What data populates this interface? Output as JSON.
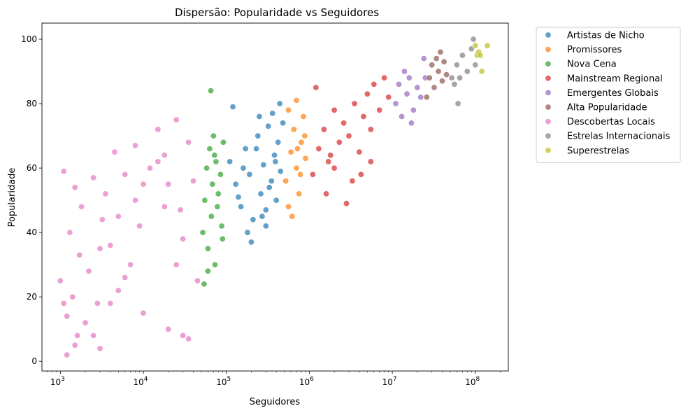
{
  "chart_data": {
    "type": "scatter",
    "title": "Dispersão: Popularidade vs Seguidores",
    "xlabel": "Seguidores",
    "ylabel": "Popularidade",
    "xscale": "log",
    "xlim": [
      600,
      250000000
    ],
    "ylim": [
      -3,
      105
    ],
    "x_ticks": [
      {
        "value": 1000,
        "base": "10",
        "exp": "3"
      },
      {
        "value": 10000,
        "base": "10",
        "exp": "4"
      },
      {
        "value": 100000,
        "base": "10",
        "exp": "5"
      },
      {
        "value": 1000000,
        "base": "10",
        "exp": "6"
      },
      {
        "value": 10000000,
        "base": "10",
        "exp": "7"
      },
      {
        "value": 100000000,
        "base": "10",
        "exp": "8"
      }
    ],
    "y_ticks": [
      0,
      20,
      40,
      60,
      80,
      100
    ],
    "grid": false,
    "legend_position": "outside-right-top",
    "series": [
      {
        "name": "Artistas de Nicho",
        "color": "#1f77b4",
        "points": [
          [
            110000,
            62
          ],
          [
            130000,
            55
          ],
          [
            150000,
            48
          ],
          [
            170000,
            66
          ],
          [
            190000,
            58
          ],
          [
            210000,
            44
          ],
          [
            240000,
            70
          ],
          [
            260000,
            52
          ],
          [
            280000,
            61
          ],
          [
            300000,
            47
          ],
          [
            320000,
            73
          ],
          [
            350000,
            56
          ],
          [
            380000,
            64
          ],
          [
            400000,
            50
          ],
          [
            420000,
            68
          ],
          [
            450000,
            59
          ],
          [
            480000,
            74
          ],
          [
            120000,
            79
          ],
          [
            180000,
            40
          ],
          [
            250000,
            76
          ],
          [
            300000,
            42
          ],
          [
            360000,
            77
          ],
          [
            440000,
            80
          ],
          [
            200000,
            37
          ],
          [
            160000,
            60
          ],
          [
            230000,
            66
          ],
          [
            270000,
            45
          ],
          [
            330000,
            54
          ],
          [
            390000,
            62
          ],
          [
            140000,
            51
          ]
        ]
      },
      {
        "name": "Promissores",
        "color": "#ff7f0e",
        "points": [
          [
            520000,
            56
          ],
          [
            560000,
            48
          ],
          [
            600000,
            65
          ],
          [
            650000,
            72
          ],
          [
            700000,
            60
          ],
          [
            750000,
            52
          ],
          [
            800000,
            68
          ],
          [
            850000,
            76
          ],
          [
            900000,
            63
          ],
          [
            700000,
            81
          ],
          [
            620000,
            45
          ],
          [
            780000,
            58
          ],
          [
            880000,
            70
          ],
          [
            560000,
            78
          ],
          [
            720000,
            66
          ]
        ]
      },
      {
        "name": "Nova Cena",
        "color": "#2ca02c",
        "points": [
          [
            52000,
            40
          ],
          [
            55000,
            50
          ],
          [
            58000,
            60
          ],
          [
            60000,
            35
          ],
          [
            63000,
            66
          ],
          [
            66000,
            45
          ],
          [
            68000,
            55
          ],
          [
            70000,
            70
          ],
          [
            73000,
            30
          ],
          [
            75000,
            62
          ],
          [
            78000,
            48
          ],
          [
            80000,
            52
          ],
          [
            85000,
            58
          ],
          [
            88000,
            42
          ],
          [
            92000,
            68
          ],
          [
            65000,
            84
          ],
          [
            54000,
            24
          ],
          [
            60000,
            28
          ],
          [
            90000,
            38
          ],
          [
            72000,
            64
          ]
        ]
      },
      {
        "name": "Mainstream Regional",
        "color": "#d62728",
        "points": [
          [
            1100000,
            58
          ],
          [
            1300000,
            66
          ],
          [
            1500000,
            72
          ],
          [
            1700000,
            62
          ],
          [
            2000000,
            78
          ],
          [
            2300000,
            68
          ],
          [
            2600000,
            74
          ],
          [
            3000000,
            70
          ],
          [
            3500000,
            80
          ],
          [
            4000000,
            65
          ],
          [
            4500000,
            76
          ],
          [
            5000000,
            83
          ],
          [
            5500000,
            72
          ],
          [
            6000000,
            86
          ],
          [
            7000000,
            78
          ],
          [
            8000000,
            88
          ],
          [
            9000000,
            82
          ],
          [
            1200000,
            85
          ],
          [
            1600000,
            52
          ],
          [
            2000000,
            60
          ],
          [
            2800000,
            49
          ],
          [
            3300000,
            56
          ],
          [
            4200000,
            58
          ],
          [
            5500000,
            62
          ],
          [
            1800000,
            64
          ]
        ]
      },
      {
        "name": "Emergentes Globais",
        "color": "#9467bd",
        "points": [
          [
            11000000,
            80
          ],
          [
            12000000,
            86
          ],
          [
            13000000,
            76
          ],
          [
            14000000,
            90
          ],
          [
            15000000,
            83
          ],
          [
            16000000,
            88
          ],
          [
            18000000,
            78
          ],
          [
            20000000,
            85
          ],
          [
            22000000,
            82
          ],
          [
            24000000,
            94
          ],
          [
            25000000,
            88
          ],
          [
            17000000,
            74
          ]
        ]
      },
      {
        "name": "Alta Popularidade",
        "color": "#8c564b",
        "points": [
          [
            26000000,
            82
          ],
          [
            28000000,
            88
          ],
          [
            30000000,
            92
          ],
          [
            32000000,
            85
          ],
          [
            34000000,
            94
          ],
          [
            36000000,
            90
          ],
          [
            38000000,
            96
          ],
          [
            40000000,
            87
          ],
          [
            42000000,
            93
          ],
          [
            45000000,
            89
          ]
        ]
      },
      {
        "name": "Descobertas Locais",
        "color": "#e377c2",
        "points": [
          [
            1000,
            25
          ],
          [
            1100,
            59
          ],
          [
            1200,
            14
          ],
          [
            1300,
            40
          ],
          [
            1400,
            20
          ],
          [
            1500,
            54
          ],
          [
            1600,
            8
          ],
          [
            1700,
            33
          ],
          [
            1800,
            48
          ],
          [
            2000,
            12
          ],
          [
            2200,
            28
          ],
          [
            2500,
            57
          ],
          [
            2800,
            18
          ],
          [
            3000,
            4
          ],
          [
            3200,
            44
          ],
          [
            3500,
            52
          ],
          [
            4000,
            36
          ],
          [
            4500,
            65
          ],
          [
            5000,
            22
          ],
          [
            6000,
            58
          ],
          [
            7000,
            30
          ],
          [
            8000,
            67
          ],
          [
            9000,
            42
          ],
          [
            10000,
            15
          ],
          [
            12000,
            60
          ],
          [
            15000,
            72
          ],
          [
            18000,
            48
          ],
          [
            20000,
            55
          ],
          [
            25000,
            75
          ],
          [
            30000,
            38
          ],
          [
            35000,
            68
          ],
          [
            40000,
            56
          ],
          [
            45000,
            25
          ],
          [
            30000,
            8
          ],
          [
            35000,
            7
          ],
          [
            20000,
            10
          ],
          [
            15000,
            62
          ],
          [
            25000,
            30
          ],
          [
            8000,
            50
          ],
          [
            6000,
            26
          ],
          [
            4000,
            18
          ],
          [
            2500,
            8
          ],
          [
            1500,
            5
          ],
          [
            1200,
            2
          ],
          [
            1100,
            18
          ],
          [
            3000,
            35
          ],
          [
            5000,
            45
          ],
          [
            10000,
            55
          ],
          [
            18000,
            64
          ],
          [
            28000,
            47
          ]
        ]
      },
      {
        "name": "Estrelas Internacionais",
        "color": "#7f7f7f",
        "points": [
          [
            52000000,
            88
          ],
          [
            56000000,
            86
          ],
          [
            60000000,
            92
          ],
          [
            62000000,
            80
          ],
          [
            65000000,
            88
          ],
          [
            70000000,
            95
          ],
          [
            80000000,
            90
          ],
          [
            90000000,
            97
          ],
          [
            100000000,
            92
          ],
          [
            95000000,
            100
          ]
        ]
      },
      {
        "name": "Superestrelas",
        "color": "#bcbd22",
        "points": [
          [
            100000000,
            98
          ],
          [
            105000000,
            95
          ],
          [
            110000000,
            96
          ],
          [
            115000000,
            95
          ],
          [
            120000000,
            90
          ],
          [
            140000000,
            98
          ]
        ]
      }
    ]
  }
}
